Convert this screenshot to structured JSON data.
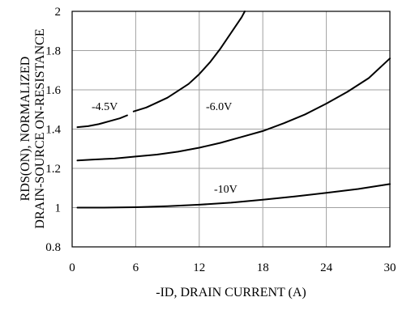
{
  "chart_data": {
    "type": "line",
    "title": "",
    "xlabel": "-ID, DRAIN CURRENT (A)",
    "ylabel_lines": [
      "RDS(ON), NORMALIZED",
      "DRAIN-SOURCE ON-RESISTANCE"
    ],
    "xlim": [
      0,
      30
    ],
    "ylim": [
      0.8,
      2
    ],
    "x_ticks": [
      0,
      6,
      12,
      18,
      24,
      30
    ],
    "y_ticks": [
      0.8,
      1,
      1.2,
      1.4,
      1.6,
      1.8,
      2
    ],
    "x_tick_labels": [
      "0",
      "6",
      "12",
      "18",
      "24",
      "30"
    ],
    "y_tick_labels": [
      "0.8",
      "1",
      "1.2",
      "1.4",
      "1.6",
      "1.8",
      "2"
    ],
    "grid": true,
    "series": [
      {
        "name": "-4.5V",
        "segments": [
          {
            "x": [
              0.5,
              1.5,
              2.5,
              3.5,
              4.5,
              5.2
            ],
            "y": [
              1.41,
              1.415,
              1.425,
              1.44,
              1.455,
              1.47
            ]
          },
          {
            "x": [
              5.8,
              7,
              8,
              9,
              10,
              11,
              12,
              13,
              14,
              15,
              16,
              16.3
            ],
            "y": [
              1.49,
              1.51,
              1.535,
              1.56,
              1.595,
              1.63,
              1.68,
              1.74,
              1.81,
              1.89,
              1.97,
              2.0
            ]
          }
        ]
      },
      {
        "name": "-6.0V",
        "x": [
          0.5,
          2,
          4,
          6,
          8,
          10,
          12,
          14,
          16,
          18,
          20,
          22,
          24,
          26,
          28,
          30
        ],
        "y": [
          1.24,
          1.245,
          1.25,
          1.26,
          1.27,
          1.285,
          1.305,
          1.33,
          1.36,
          1.39,
          1.43,
          1.475,
          1.53,
          1.59,
          1.66,
          1.76
        ]
      },
      {
        "name": "-10V",
        "x": [
          0.5,
          3,
          6,
          9,
          12,
          15,
          18,
          21,
          24,
          27,
          30
        ],
        "y": [
          1.0,
          1.0,
          1.002,
          1.007,
          1.015,
          1.025,
          1.04,
          1.057,
          1.075,
          1.095,
          1.12
        ]
      }
    ],
    "series_labels": [
      "-4.5V",
      "-6.0V",
      "-10V"
    ]
  }
}
